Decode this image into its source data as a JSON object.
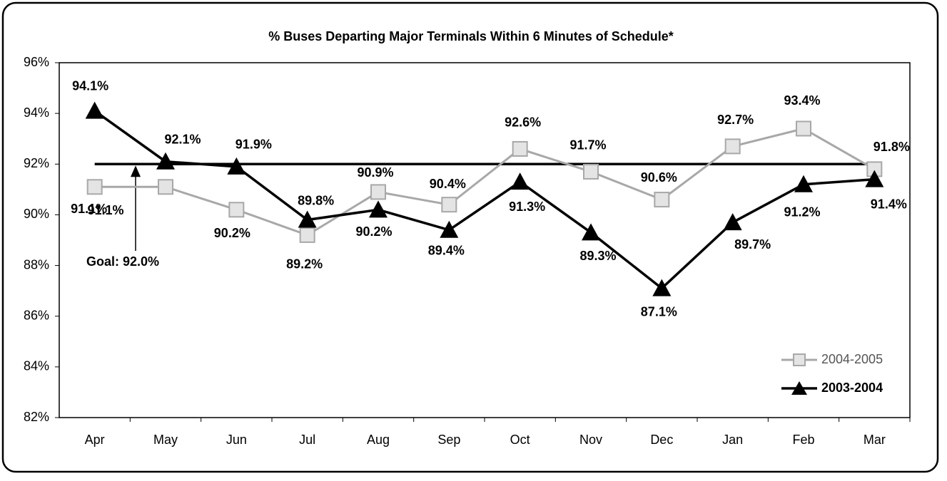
{
  "chart_data": {
    "type": "line",
    "title": "% Buses Departing Major Terminals Within 6 Minutes of Schedule*",
    "categories": [
      "Apr",
      "May",
      "Jun",
      "Jul",
      "Aug",
      "Sep",
      "Oct",
      "Nov",
      "Dec",
      "Jan",
      "Feb",
      "Mar"
    ],
    "series": [
      {
        "name": "2004-2005",
        "color": "#a8a8a8",
        "marker": "square",
        "values": [
          91.1,
          91.1,
          90.2,
          89.2,
          90.9,
          90.4,
          92.6,
          91.7,
          90.6,
          92.7,
          93.4,
          91.8
        ],
        "value_labels": [
          "91.1%",
          "91.1%",
          "90.2%",
          "89.2%",
          "90.9%",
          "90.4%",
          "92.6%",
          "91.7%",
          "90.6%",
          "92.7%",
          "93.4%",
          "91.8%"
        ]
      },
      {
        "name": "2003-2004",
        "color": "#000000",
        "marker": "triangle",
        "values": [
          94.1,
          92.1,
          91.9,
          89.8,
          90.2,
          89.4,
          91.3,
          89.3,
          87.1,
          89.7,
          91.2,
          91.4
        ],
        "value_labels": [
          "94.1%",
          "92.1%",
          "91.9%",
          "89.8%",
          "90.2%",
          "89.4%",
          "91.3%",
          "89.3%",
          "87.1%",
          "89.7%",
          "91.2%",
          "91.4%"
        ]
      }
    ],
    "goal": {
      "value": 92,
      "label": "Goal:  92.0%"
    },
    "ylim": [
      82,
      96
    ],
    "yticks": [
      {
        "value": 82,
        "label": "82%"
      },
      {
        "value": 84,
        "label": "84%"
      },
      {
        "value": 86,
        "label": "86%"
      },
      {
        "value": 88,
        "label": "88%"
      },
      {
        "value": 90,
        "label": "90%"
      },
      {
        "value": 92,
        "label": "92%"
      },
      {
        "value": 94,
        "label": "94%"
      },
      {
        "value": 96,
        "label": "96%"
      }
    ],
    "grid": false,
    "legend": "lower right"
  }
}
